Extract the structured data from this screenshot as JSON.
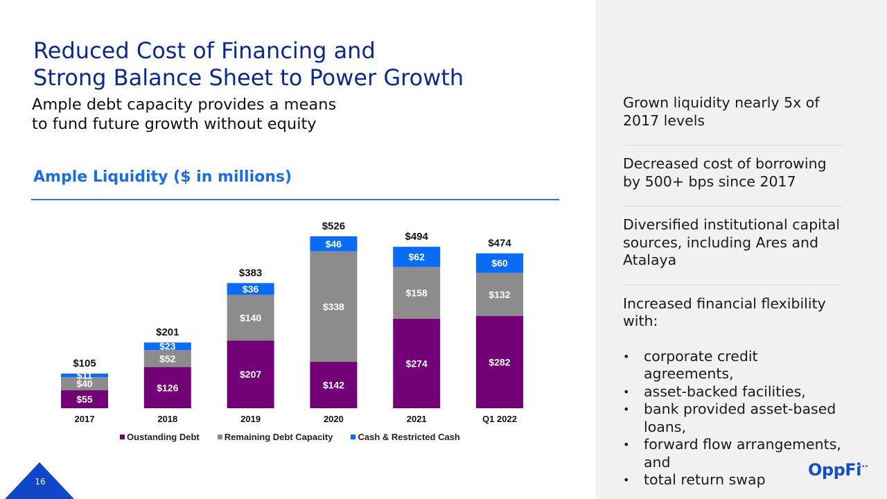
{
  "slide": {
    "title_lines": [
      "Reduced Cost of Financing and",
      "Strong Balance Sheet to Power Growth"
    ],
    "subtitle_lines": [
      "Ample debt capacity provides a means",
      "to fund future growth without equity"
    ],
    "chart_heading": "Ample Liquidity ($ in millions)",
    "page_number": "16",
    "logo": {
      "text": "OppFi",
      "dots": "•••"
    }
  },
  "colors": {
    "outstanding_debt": "#730077",
    "remaining_capacity": "#8c8c8c",
    "cash": "#0a6cf5",
    "title": "#0a2a8c",
    "accent": "#1a6ee0"
  },
  "highlights": [
    {
      "lines": [
        "Grown liquidity nearly 5x of",
        "2017 levels"
      ]
    },
    {
      "lines": [
        "Decreased cost of borrowing",
        "by 500+ bps since 2017"
      ]
    },
    {
      "lines": [
        "Diversified institutional capital",
        "sources, including Ares and",
        "Atalaya"
      ]
    },
    {
      "lines": [
        "Increased financial flexibility",
        "with:"
      ],
      "bullets": [
        "corporate credit agreements,",
        "asset-backed facilities,",
        "bank provided asset-based loans,",
        "forward flow arrangements, and",
        "total return swap"
      ]
    }
  ],
  "chart_data": {
    "type": "bar",
    "stacked": true,
    "title": "Ample Liquidity ($ in millions)",
    "xlabel": "",
    "ylabel": "",
    "categories": [
      "2017",
      "2018",
      "2019",
      "2020",
      "2021",
      "Q1 2022"
    ],
    "series": [
      {
        "name": "Oustanding Debt",
        "color": "#730077",
        "values": [
          55,
          126,
          207,
          142,
          274,
          282
        ]
      },
      {
        "name": "Remaining Debt Capacity",
        "color": "#8c8c8c",
        "values": [
          40,
          52,
          140,
          338,
          158,
          132
        ]
      },
      {
        "name": "Cash & Restricted Cash",
        "color": "#0a6cf5",
        "values": [
          11,
          23,
          36,
          46,
          62,
          60
        ]
      }
    ],
    "totals": [
      105,
      201,
      383,
      526,
      494,
      474
    ],
    "value_prefix": "$",
    "ylim": [
      0,
      526
    ],
    "grid": false,
    "legend": "bottom"
  }
}
